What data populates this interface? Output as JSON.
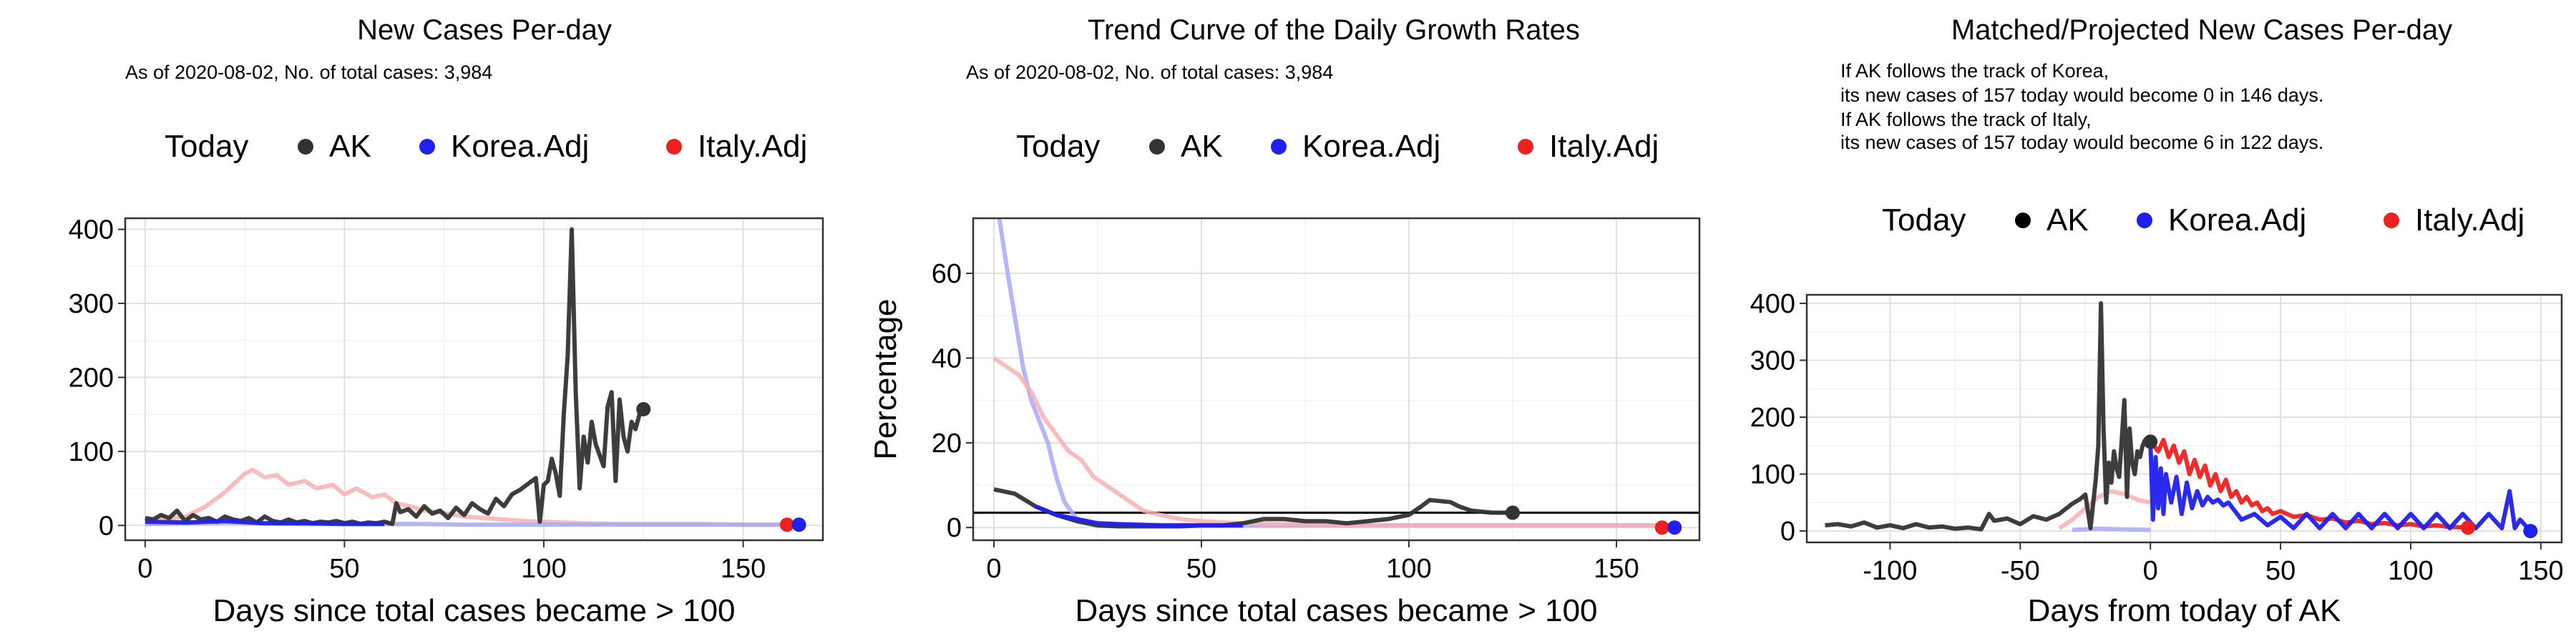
{
  "colors": {
    "ak": "#333333",
    "korea": "#2020ee",
    "italy": "#ee2020",
    "korea_light": "#a8a8f8",
    "italy_light": "#f8b0b0",
    "grid": "#ebebeb",
    "grid_major": "#e0e0e0",
    "panel_border": "#333333",
    "hline": "#000000"
  },
  "chart_data": [
    {
      "type": "line",
      "title": "New Cases Per-day",
      "subtitle": [
        "As of 2020-08-02, No. of total cases: 3,984"
      ],
      "xlabel": "Days since total cases became > 100",
      "ylabel": "",
      "xlim": [
        -5,
        170
      ],
      "ylim": [
        -20,
        415
      ],
      "xticks": [
        0,
        50,
        100,
        150
      ],
      "yticks": [
        0,
        100,
        200,
        300,
        400
      ],
      "legend": {
        "title": "Today",
        "position": "top",
        "items": [
          {
            "label": "AK",
            "color": "#333333"
          },
          {
            "label": "Korea.Adj",
            "color": "#2020ee"
          },
          {
            "label": "Italy.Adj",
            "color": "#ee2020"
          }
        ]
      },
      "series": [
        {
          "name": "Italy.Adj",
          "style": "light",
          "x": [
            0,
            5,
            10,
            15,
            20,
            22,
            25,
            27,
            30,
            33,
            36,
            40,
            43,
            47,
            50,
            53,
            57,
            60,
            63,
            67,
            70,
            73,
            77,
            80,
            85,
            90,
            95,
            100,
            110,
            120,
            130,
            140,
            150,
            160
          ],
          "y": [
            5,
            8,
            12,
            25,
            45,
            55,
            70,
            75,
            65,
            68,
            55,
            60,
            50,
            55,
            42,
            50,
            38,
            42,
            30,
            25,
            20,
            18,
            15,
            12,
            10,
            8,
            6,
            5,
            3,
            2,
            2,
            2,
            1,
            1
          ]
        },
        {
          "name": "Korea.Adj",
          "style": "light",
          "x": [
            0,
            10,
            20,
            30,
            40,
            50,
            60,
            70,
            80,
            90,
            100,
            110,
            120,
            130,
            140,
            150,
            160,
            164
          ],
          "y": [
            2,
            3,
            4,
            3,
            2,
            2,
            2,
            2,
            1,
            1,
            1,
            1,
            1,
            1,
            1,
            1,
            1,
            1
          ]
        },
        {
          "name": "AK",
          "style": "main",
          "x": [
            0,
            2,
            4,
            6,
            8,
            10,
            12,
            14,
            16,
            18,
            20,
            22,
            24,
            26,
            28,
            30,
            32,
            34,
            36,
            38,
            40,
            42,
            44,
            46,
            48,
            50,
            52,
            54,
            56,
            58,
            60,
            62,
            63,
            64,
            66,
            68,
            70,
            72,
            74,
            76,
            78,
            80,
            82,
            84,
            86,
            88,
            90,
            92,
            94,
            96,
            98,
            99,
            100,
            101,
            102,
            103,
            104,
            105,
            106,
            107,
            108,
            109,
            110,
            111,
            112,
            113,
            114,
            115,
            116,
            117,
            118,
            119,
            120,
            121,
            122,
            123,
            124,
            125
          ],
          "y": [
            10,
            8,
            14,
            10,
            20,
            6,
            14,
            8,
            10,
            5,
            12,
            8,
            6,
            10,
            4,
            12,
            6,
            4,
            8,
            4,
            6,
            3,
            5,
            4,
            6,
            3,
            5,
            2,
            4,
            3,
            5,
            2,
            30,
            18,
            22,
            12,
            26,
            16,
            20,
            10,
            24,
            14,
            30,
            22,
            16,
            36,
            26,
            42,
            48,
            56,
            64,
            5,
            55,
            60,
            90,
            70,
            40,
            150,
            230,
            400,
            180,
            50,
            120,
            85,
            140,
            110,
            95,
            80,
            160,
            180,
            60,
            170,
            120,
            100,
            140,
            130,
            150,
            157
          ]
        },
        {
          "name": "Korea.Adj",
          "style": "main",
          "x": [
            0,
            10,
            20,
            30,
            40,
            50,
            60
          ],
          "y": [
            5,
            4,
            6,
            3,
            3,
            2,
            2
          ]
        }
      ],
      "today_points": [
        {
          "name": "AK",
          "x": 125,
          "y": 157
        },
        {
          "name": "Italy.Adj",
          "x": 161,
          "y": 1
        },
        {
          "name": "Korea.Adj",
          "x": 164,
          "y": 1
        }
      ]
    },
    {
      "type": "line",
      "title": "Trend Curve of the Daily Growth Rates",
      "subtitle": [
        "As of 2020-08-02, No. of total cases: 3,984"
      ],
      "xlabel": "Days since total cases became > 100",
      "ylabel": "Percentage",
      "xlim": [
        -5,
        170
      ],
      "ylim": [
        -3,
        73
      ],
      "xticks": [
        0,
        50,
        100,
        150
      ],
      "yticks": [
        0,
        20,
        40,
        60
      ],
      "hline": 3.5,
      "legend": {
        "title": "Today",
        "position": "top",
        "items": [
          {
            "label": "AK",
            "color": "#333333"
          },
          {
            "label": "Korea.Adj",
            "color": "#2020ee"
          },
          {
            "label": "Italy.Adj",
            "color": "#ee2020"
          }
        ]
      },
      "series": [
        {
          "name": "Korea.Adj",
          "style": "light",
          "x": [
            1,
            3,
            5,
            7,
            9,
            11,
            13,
            15,
            17,
            20,
            25,
            30,
            40,
            60,
            80,
            100,
            120,
            140,
            160,
            164
          ],
          "y": [
            75,
            62,
            50,
            38,
            30,
            25,
            20,
            12,
            6,
            2,
            1,
            0.8,
            0.6,
            0.5,
            0.5,
            0.5,
            0.5,
            0.5,
            0.5,
            0.5
          ]
        },
        {
          "name": "Italy.Adj",
          "style": "light",
          "x": [
            0,
            3,
            6,
            9,
            12,
            15,
            18,
            21,
            24,
            27,
            30,
            33,
            36,
            40,
            45,
            50,
            55,
            60,
            70,
            80,
            90,
            100,
            120,
            140,
            160
          ],
          "y": [
            40,
            38,
            36,
            32,
            26,
            22,
            18,
            16,
            12,
            10,
            8,
            6,
            4,
            3,
            2,
            1.5,
            1.2,
            1,
            0.8,
            0.6,
            0.5,
            0.5,
            0.5,
            0.5,
            0.5
          ]
        },
        {
          "name": "AK",
          "style": "main",
          "x": [
            0,
            5,
            10,
            15,
            20,
            25,
            30,
            35,
            40,
            45,
            50,
            55,
            60,
            65,
            70,
            75,
            80,
            85,
            90,
            95,
            100,
            103,
            105,
            110,
            112,
            115,
            120,
            125
          ],
          "y": [
            9,
            8,
            5,
            3,
            1.5,
            0.5,
            0.3,
            0.3,
            0.3,
            0.3,
            0.5,
            0.5,
            1,
            2,
            2,
            1.5,
            1.5,
            1,
            1.5,
            2,
            3,
            5,
            6.5,
            6,
            5,
            4,
            3.5,
            3.5
          ]
        },
        {
          "name": "Korea.Adj",
          "style": "main",
          "x": [
            10,
            15,
            20,
            25,
            30,
            40,
            50,
            60
          ],
          "y": [
            5,
            3,
            2,
            1,
            0.8,
            0.5,
            0.5,
            0.5
          ]
        }
      ],
      "today_points": [
        {
          "name": "AK",
          "x": 125,
          "y": 3.5
        },
        {
          "name": "Italy.Adj",
          "x": 161,
          "y": 0
        },
        {
          "name": "Korea.Adj",
          "x": 164,
          "y": 0
        }
      ]
    },
    {
      "type": "line",
      "title": "Matched/Projected New Cases Per-day",
      "subtitle": [
        "If AK follows the track of Korea,",
        "its new cases of 157 today would become 0 in 146 days.",
        "If AK follows the track of Italy,",
        "its new cases of 157 today would become 6 in 122 days."
      ],
      "xlabel": "Days from today of AK",
      "ylabel": "",
      "xlim": [
        -132,
        158
      ],
      "ylim": [
        -20,
        415
      ],
      "xticks": [
        -100,
        -50,
        0,
        50,
        100,
        150
      ],
      "yticks": [
        0,
        100,
        200,
        300,
        400
      ],
      "legend": {
        "title": "Today",
        "position": "top",
        "items": [
          {
            "label": "AK",
            "color": "#000000"
          },
          {
            "label": "Korea.Adj",
            "color": "#2020ee"
          },
          {
            "label": "Italy.Adj",
            "color": "#ee2020"
          }
        ]
      },
      "series": [
        {
          "name": "Italy.Adj",
          "style": "light",
          "x": [
            -35,
            -30,
            -25,
            -20,
            -15,
            -10,
            -5,
            0
          ],
          "y": [
            5,
            20,
            40,
            60,
            70,
            65,
            55,
            50
          ]
        },
        {
          "name": "Korea.Adj",
          "style": "light",
          "x": [
            -30,
            -20,
            -10,
            0
          ],
          "y": [
            2,
            4,
            3,
            2
          ]
        },
        {
          "name": "AK",
          "style": "main",
          "x": [
            -125,
            -120,
            -115,
            -110,
            -105,
            -100,
            -95,
            -90,
            -85,
            -80,
            -75,
            -70,
            -65,
            -62,
            -60,
            -55,
            -50,
            -45,
            -40,
            -35,
            -30,
            -27,
            -25,
            -23,
            -21,
            -20,
            -19,
            -18,
            -17,
            -16,
            -15,
            -14,
            -13,
            -12,
            -11,
            -10,
            -9,
            -8,
            -7,
            -6,
            -5,
            -4,
            -3,
            -2,
            -1,
            0
          ],
          "y": [
            10,
            12,
            8,
            15,
            6,
            10,
            5,
            12,
            6,
            8,
            4,
            6,
            3,
            30,
            18,
            22,
            12,
            26,
            20,
            30,
            48,
            56,
            64,
            5,
            90,
            150,
            400,
            180,
            50,
            120,
            85,
            140,
            110,
            95,
            160,
            230,
            60,
            180,
            120,
            100,
            140,
            130,
            150,
            160,
            150,
            157
          ]
        },
        {
          "name": "Italy.Adj",
          "style": "main",
          "x": [
            0,
            3,
            5,
            7,
            9,
            11,
            13,
            15,
            17,
            19,
            21,
            23,
            25,
            27,
            29,
            31,
            33,
            35,
            37,
            39,
            41,
            43,
            45,
            47,
            50,
            55,
            60,
            65,
            70,
            75,
            80,
            85,
            90,
            95,
            100,
            105,
            110,
            115,
            122
          ],
          "y": [
            157,
            140,
            160,
            130,
            150,
            120,
            140,
            100,
            125,
            95,
            115,
            80,
            100,
            70,
            90,
            60,
            70,
            50,
            60,
            45,
            50,
            35,
            40,
            30,
            35,
            25,
            28,
            20,
            22,
            15,
            18,
            12,
            14,
            10,
            12,
            8,
            10,
            7,
            6
          ]
        },
        {
          "name": "Korea.Adj",
          "style": "main",
          "x": [
            0,
            1,
            2,
            3,
            4,
            5,
            6,
            8,
            10,
            12,
            14,
            16,
            18,
            20,
            22,
            24,
            26,
            28,
            30,
            35,
            40,
            45,
            50,
            55,
            60,
            65,
            70,
            75,
            80,
            85,
            90,
            95,
            100,
            105,
            110,
            115,
            120,
            125,
            130,
            135,
            138,
            140,
            142,
            146
          ],
          "y": [
            157,
            20,
            130,
            40,
            110,
            30,
            100,
            50,
            95,
            30,
            85,
            40,
            70,
            45,
            60,
            50,
            55,
            45,
            50,
            20,
            30,
            10,
            25,
            5,
            30,
            5,
            30,
            5,
            30,
            5,
            30,
            5,
            30,
            5,
            30,
            5,
            30,
            5,
            30,
            5,
            70,
            5,
            20,
            0
          ]
        }
      ],
      "today_points": [
        {
          "name": "AK",
          "x": 0,
          "y": 157
        },
        {
          "name": "Italy.Adj",
          "x": 122,
          "y": 6
        },
        {
          "name": "Korea.Adj",
          "x": 146,
          "y": 0
        }
      ]
    }
  ]
}
